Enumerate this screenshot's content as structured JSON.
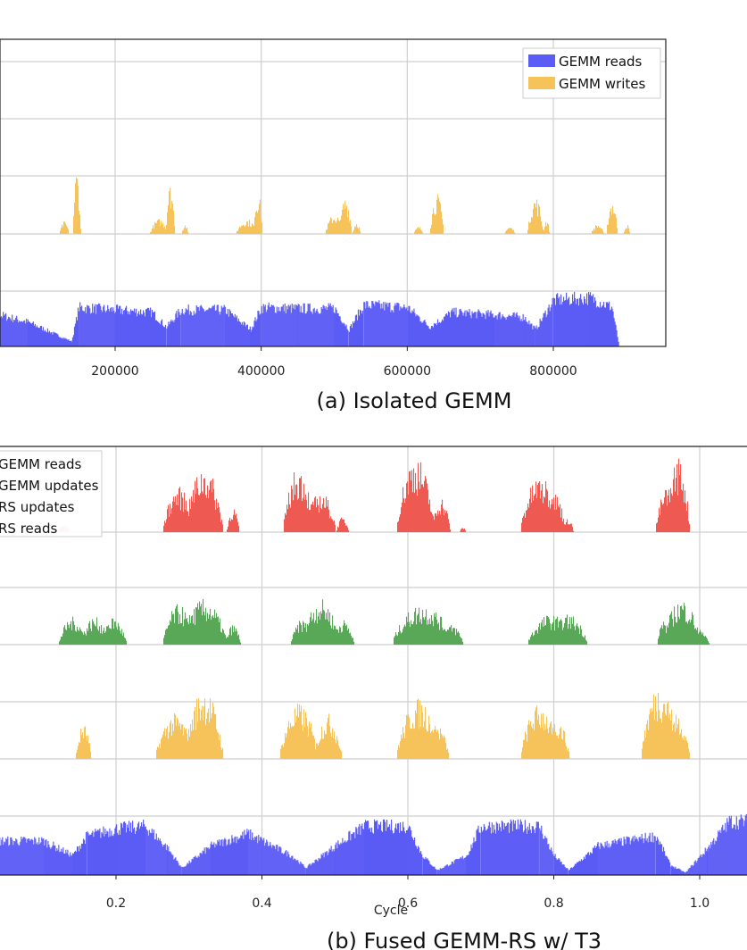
{
  "chart_data": [
    {
      "type": "area",
      "caption": "(a) Isolated GEMM",
      "xlabel": "",
      "ylabel": "",
      "xlim": [
        0,
        1010000
      ],
      "xticks": [
        200000,
        400000,
        600000,
        800000
      ],
      "tick_labels": [
        "200000",
        "400000",
        "600000",
        "800000"
      ],
      "grid": true,
      "legend_position": "top-right",
      "series": [
        {
          "name": "GEMM reads",
          "color": "#5b5bf5",
          "lane": 0,
          "bursts": [
            [
              0,
              0.7
            ],
            [
              40000,
              0.65
            ],
            [
              80000,
              0.5
            ],
            [
              110000,
              0.3
            ],
            [
              140000,
              0.1
            ],
            [
              150000,
              0.8
            ],
            [
              200000,
              0.75
            ],
            [
              250000,
              0.7
            ],
            [
              270000,
              0.4
            ],
            [
              290000,
              0.75
            ],
            [
              350000,
              0.75
            ],
            [
              385000,
              0.35
            ],
            [
              400000,
              0.8
            ],
            [
              450000,
              0.78
            ],
            [
              500000,
              0.78
            ],
            [
              520000,
              0.35
            ],
            [
              540000,
              0.85
            ],
            [
              600000,
              0.8
            ],
            [
              630000,
              0.4
            ],
            [
              660000,
              0.7
            ],
            [
              720000,
              0.65
            ],
            [
              760000,
              0.6
            ],
            [
              775000,
              0.35
            ],
            [
              800000,
              0.95
            ],
            [
              850000,
              1.0
            ],
            [
              880000,
              0.8
            ],
            [
              890000,
              0.0
            ]
          ]
        },
        {
          "name": "GEMM writes",
          "color": "#f5c35a",
          "lane": 1,
          "bursts": [
            [
              130000,
              0.25,
              6000
            ],
            [
              147000,
              1.3,
              5000
            ],
            [
              260000,
              0.3,
              12000
            ],
            [
              275000,
              1.0,
              6000
            ],
            [
              295000,
              0.2,
              4000
            ],
            [
              380000,
              0.3,
              14000
            ],
            [
              395000,
              0.85,
              6000
            ],
            [
              500000,
              0.4,
              12000
            ],
            [
              515000,
              0.75,
              8000
            ],
            [
              530000,
              0.25,
              5000
            ],
            [
              615000,
              0.15,
              6000
            ],
            [
              640000,
              0.8,
              9000
            ],
            [
              740000,
              0.15,
              7000
            ],
            [
              775000,
              0.75,
              10000
            ],
            [
              790000,
              0.3,
              4000
            ],
            [
              860000,
              0.2,
              8000
            ],
            [
              880000,
              0.7,
              7000
            ],
            [
              900000,
              0.2,
              4000
            ]
          ]
        }
      ]
    },
    {
      "type": "area",
      "caption": "(b) Fused GEMM-RS w/ T3",
      "xlabel": "Cycle",
      "ylabel": "",
      "xlim": [
        0.04,
        1.1
      ],
      "xticks": [
        0.2,
        0.4,
        0.6,
        0.8,
        1.0
      ],
      "tick_labels": [
        "0.2",
        "0.4",
        "0.6",
        "0.8",
        "1.0"
      ],
      "grid": true,
      "legend_position": "top-left",
      "series": [
        {
          "name": "GEMM reads",
          "color": "#5b5bf5",
          "lane": 0,
          "bursts": [
            [
              0.04,
              0.7
            ],
            [
              0.1,
              0.7
            ],
            [
              0.14,
              0.4
            ],
            [
              0.16,
              0.8
            ],
            [
              0.2,
              0.95
            ],
            [
              0.24,
              1.0
            ],
            [
              0.27,
              0.55
            ],
            [
              0.29,
              0.15
            ],
            [
              0.33,
              0.6
            ],
            [
              0.38,
              0.85
            ],
            [
              0.44,
              0.4
            ],
            [
              0.46,
              0.15
            ],
            [
              0.5,
              0.6
            ],
            [
              0.54,
              1.0
            ],
            [
              0.6,
              1.0
            ],
            [
              0.62,
              0.4
            ],
            [
              0.64,
              0.1
            ],
            [
              0.68,
              0.4
            ],
            [
              0.7,
              1.0
            ],
            [
              0.78,
              1.0
            ],
            [
              0.8,
              0.4
            ],
            [
              0.82,
              0.1
            ],
            [
              0.86,
              0.6
            ],
            [
              0.94,
              0.8
            ],
            [
              0.96,
              0.2
            ],
            [
              0.98,
              0.05
            ],
            [
              1.01,
              0.55
            ],
            [
              1.04,
              1.1
            ],
            [
              1.1,
              1.1
            ]
          ]
        },
        {
          "name": "GEMM updates",
          "color": "#f5c35a",
          "lane": 1,
          "bursts": [
            [
              0.155,
              0.7,
              0.01
            ],
            [
              0.28,
              0.9,
              0.025
            ],
            [
              0.32,
              1.4,
              0.025
            ],
            [
              0.45,
              1.1,
              0.025
            ],
            [
              0.49,
              0.9,
              0.018
            ],
            [
              0.615,
              1.2,
              0.03
            ],
            [
              0.64,
              0.7,
              0.015
            ],
            [
              0.78,
              1.1,
              0.025
            ],
            [
              0.805,
              0.8,
              0.015
            ],
            [
              0.945,
              1.5,
              0.025
            ],
            [
              0.97,
              0.9,
              0.015
            ]
          ]
        },
        {
          "name": "RS updates",
          "color": "#58a858",
          "lane": 2,
          "bursts": [
            [
              0.14,
              0.55,
              0.018
            ],
            [
              0.17,
              0.55,
              0.018
            ],
            [
              0.195,
              0.55,
              0.018
            ],
            [
              0.285,
              0.8,
              0.02
            ],
            [
              0.32,
              0.9,
              0.03
            ],
            [
              0.36,
              0.4,
              0.01
            ],
            [
              0.455,
              0.5,
              0.015
            ],
            [
              0.48,
              0.9,
              0.025
            ],
            [
              0.51,
              0.5,
              0.015
            ],
            [
              0.62,
              0.8,
              0.04
            ],
            [
              0.66,
              0.4,
              0.015
            ],
            [
              0.795,
              0.6,
              0.03
            ],
            [
              0.82,
              0.6,
              0.025
            ],
            [
              0.95,
              0.5,
              0.008
            ],
            [
              0.975,
              0.9,
              0.025
            ],
            [
              1.0,
              0.3,
              0.012
            ]
          ]
        },
        {
          "name": "RS reads",
          "color": "#ee5a52",
          "lane": 3,
          "bursts": [
            [
              0.128,
              0.15,
              0.008
            ],
            [
              0.285,
              0.9,
              0.02
            ],
            [
              0.32,
              1.3,
              0.025
            ],
            [
              0.36,
              0.5,
              0.008
            ],
            [
              0.45,
              1.3,
              0.02
            ],
            [
              0.48,
              0.8,
              0.02
            ],
            [
              0.51,
              0.3,
              0.008
            ],
            [
              0.61,
              1.5,
              0.025
            ],
            [
              0.645,
              0.7,
              0.012
            ],
            [
              0.675,
              0.1,
              0.004
            ],
            [
              0.78,
              1.1,
              0.025
            ],
            [
              0.8,
              0.8,
              0.015
            ],
            [
              0.82,
              0.3,
              0.006
            ],
            [
              0.955,
              0.9,
              0.015
            ],
            [
              0.97,
              1.5,
              0.015
            ]
          ]
        }
      ]
    }
  ]
}
